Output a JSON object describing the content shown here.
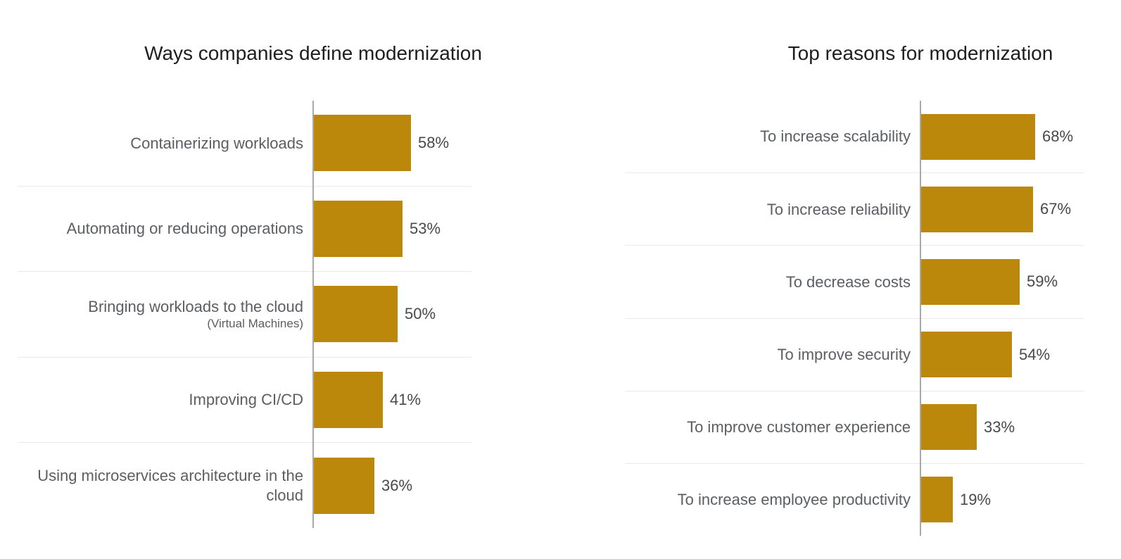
{
  "colors": {
    "bar": "#bc880c",
    "title_text": "#1e1e1e",
    "category_text": "#5b5e62",
    "value_text": "#48494b",
    "axis_line": "#a9a9a9",
    "row_separator": "#e9e9e9",
    "background": "#ffffff"
  },
  "chart_data": [
    {
      "type": "bar",
      "orientation": "horizontal",
      "title": "Ways companies define modernization",
      "categories": [
        "Containerizing workloads",
        "Automating or reducing operations",
        "Bringing workloads to the cloud",
        "Improving CI/CD",
        "Using microservices architecture in the cloud"
      ],
      "sublabels": [
        "",
        "",
        "(Virtual Machines)",
        "",
        ""
      ],
      "values": [
        58,
        53,
        50,
        41,
        36
      ],
      "value_labels": [
        "58%",
        "53%",
        "50%",
        "41%",
        "36%"
      ],
      "xlim": [
        0,
        95
      ],
      "grid": "row-separators-only",
      "legend": "none"
    },
    {
      "type": "bar",
      "orientation": "horizontal",
      "title": "Top reasons for modernization",
      "categories": [
        "To increase scalability",
        "To increase reliability",
        "To decrease costs",
        "To improve security",
        "To improve customer experience",
        "To increase employee productivity"
      ],
      "sublabels": [
        "",
        "",
        "",
        "",
        "",
        ""
      ],
      "values": [
        68,
        67,
        59,
        54,
        33,
        19
      ],
      "value_labels": [
        "68%",
        "67%",
        "59%",
        "54%",
        "33%",
        "19%"
      ],
      "xlim": [
        0,
        97
      ],
      "grid": "row-separators-only",
      "legend": "none"
    }
  ]
}
